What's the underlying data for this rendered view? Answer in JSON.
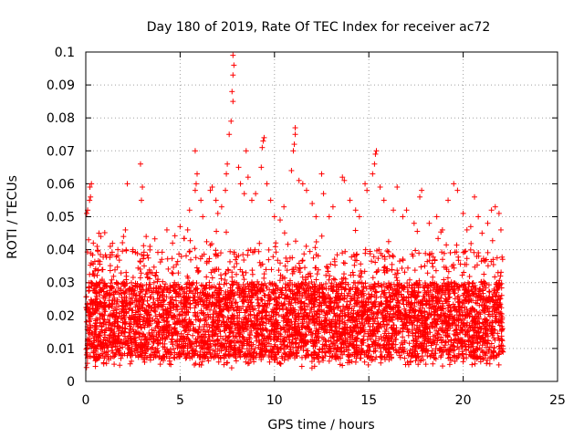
{
  "chart_data": {
    "type": "scatter",
    "title": "Day 180 of 2019, Rate Of TEC Index for receiver ac72",
    "xlabel": "GPS time / hours",
    "ylabel": "ROTI / TECUs",
    "xlim": [
      0,
      25
    ],
    "ylim": [
      0,
      0.1
    ],
    "x_ticks": [
      0,
      5,
      10,
      15,
      20,
      25
    ],
    "x_tick_labels": [
      "0",
      "5",
      "10",
      "15",
      "20",
      "25"
    ],
    "y_ticks": [
      0,
      0.01,
      0.02,
      0.03,
      0.04,
      0.05,
      0.06,
      0.07,
      0.08,
      0.09,
      0.1
    ],
    "y_tick_labels": [
      "0",
      "0.01",
      "0.02",
      "0.03",
      "0.04",
      "0.05",
      "0.06",
      "0.07",
      "0.08",
      "0.09",
      "0.1"
    ],
    "grid": true,
    "marker": "+",
    "marker_color": "#ff0000",
    "series": [
      {
        "name": "ROTI",
        "points": [
          [
            0.05,
            0.051
          ],
          [
            0.1,
            0.052
          ],
          [
            0.2,
            0.055
          ],
          [
            0.25,
            0.056
          ],
          [
            0.22,
            0.059
          ],
          [
            0.3,
            0.06
          ],
          [
            0.15,
            0.043
          ],
          [
            0.4,
            0.042
          ],
          [
            0.6,
            0.041
          ],
          [
            0.7,
            0.045
          ],
          [
            0.8,
            0.044
          ],
          [
            1.3,
            0.041
          ],
          [
            1.7,
            0.04
          ],
          [
            2.0,
            0.044
          ],
          [
            2.1,
            0.046
          ],
          [
            2.2,
            0.06
          ],
          [
            2.5,
            0.04
          ],
          [
            2.9,
            0.066
          ],
          [
            3.0,
            0.059
          ],
          [
            2.95,
            0.055
          ],
          [
            3.2,
            0.044
          ],
          [
            3.4,
            0.041
          ],
          [
            4.3,
            0.046
          ],
          [
            4.6,
            0.042
          ],
          [
            5.0,
            0.047
          ],
          [
            5.4,
            0.046
          ],
          [
            5.5,
            0.052
          ],
          [
            5.8,
            0.058
          ],
          [
            5.85,
            0.06
          ],
          [
            5.9,
            0.063
          ],
          [
            5.8,
            0.07
          ],
          [
            6.1,
            0.055
          ],
          [
            6.2,
            0.05
          ],
          [
            6.6,
            0.058
          ],
          [
            6.7,
            0.059
          ],
          [
            6.9,
            0.055
          ],
          [
            7.0,
            0.051
          ],
          [
            7.2,
            0.053
          ],
          [
            7.4,
            0.058
          ],
          [
            7.45,
            0.063
          ],
          [
            7.5,
            0.066
          ],
          [
            7.6,
            0.075
          ],
          [
            7.7,
            0.079
          ],
          [
            7.8,
            0.085
          ],
          [
            7.75,
            0.088
          ],
          [
            7.8,
            0.093
          ],
          [
            7.85,
            0.096
          ],
          [
            7.8,
            0.099
          ],
          [
            8.1,
            0.065
          ],
          [
            8.2,
            0.06
          ],
          [
            8.4,
            0.057
          ],
          [
            8.5,
            0.07
          ],
          [
            8.6,
            0.062
          ],
          [
            8.8,
            0.055
          ],
          [
            9.0,
            0.057
          ],
          [
            9.3,
            0.065
          ],
          [
            9.35,
            0.071
          ],
          [
            9.4,
            0.073
          ],
          [
            9.45,
            0.074
          ],
          [
            9.6,
            0.06
          ],
          [
            9.8,
            0.055
          ],
          [
            10.0,
            0.05
          ],
          [
            10.3,
            0.049
          ],
          [
            10.5,
            0.053
          ],
          [
            10.9,
            0.064
          ],
          [
            11.0,
            0.07
          ],
          [
            11.05,
            0.072
          ],
          [
            11.1,
            0.075
          ],
          [
            11.1,
            0.077
          ],
          [
            11.3,
            0.061
          ],
          [
            11.5,
            0.06
          ],
          [
            11.7,
            0.058
          ],
          [
            12.0,
            0.054
          ],
          [
            12.2,
            0.05
          ],
          [
            12.5,
            0.063
          ],
          [
            12.6,
            0.057
          ],
          [
            12.9,
            0.05
          ],
          [
            13.1,
            0.053
          ],
          [
            13.6,
            0.062
          ],
          [
            13.7,
            0.061
          ],
          [
            14.0,
            0.055
          ],
          [
            14.3,
            0.052
          ],
          [
            14.5,
            0.05
          ],
          [
            14.8,
            0.06
          ],
          [
            14.9,
            0.058
          ],
          [
            15.2,
            0.063
          ],
          [
            15.3,
            0.066
          ],
          [
            15.35,
            0.069
          ],
          [
            15.4,
            0.07
          ],
          [
            15.6,
            0.059
          ],
          [
            15.8,
            0.055
          ],
          [
            16.3,
            0.052
          ],
          [
            16.5,
            0.059
          ],
          [
            16.8,
            0.05
          ],
          [
            17.0,
            0.052
          ],
          [
            17.4,
            0.048
          ],
          [
            17.7,
            0.056
          ],
          [
            17.8,
            0.058
          ],
          [
            18.2,
            0.048
          ],
          [
            18.6,
            0.05
          ],
          [
            18.9,
            0.046
          ],
          [
            19.2,
            0.055
          ],
          [
            19.5,
            0.06
          ],
          [
            19.7,
            0.058
          ],
          [
            20.0,
            0.051
          ],
          [
            20.2,
            0.046
          ],
          [
            20.4,
            0.047
          ],
          [
            20.6,
            0.056
          ],
          [
            20.8,
            0.05
          ],
          [
            21.0,
            0.045
          ],
          [
            21.3,
            0.048
          ],
          [
            21.5,
            0.052
          ],
          [
            21.7,
            0.053
          ],
          [
            21.9,
            0.051
          ],
          [
            22.0,
            0.046
          ]
        ]
      }
    ]
  }
}
